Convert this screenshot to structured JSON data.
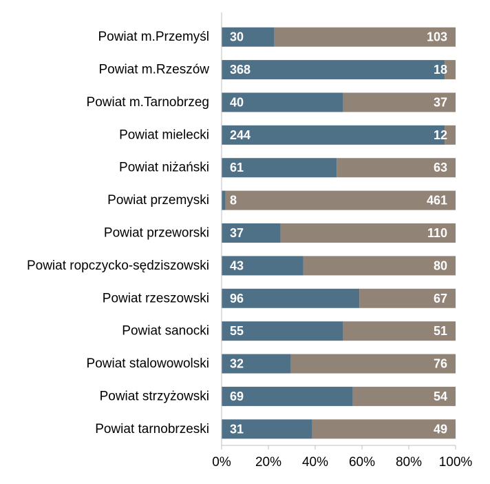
{
  "chart_data": {
    "type": "bar",
    "orientation": "horizontal",
    "stacked": true,
    "normalized": true,
    "categories": [
      "Powiat m.Przemyśl",
      "Powiat m.Rzeszów",
      "Powiat m.Tarnobrzeg",
      "Powiat mielecki",
      "Powiat niżański",
      "Powiat przemyski",
      "Powiat przeworski",
      "Powiat ropczycko-sędziszowski",
      "Powiat rzeszowski",
      "Powiat sanocki",
      "Powiat stalowowolski",
      "Powiat strzyżowski",
      "Powiat tarnobrzeski"
    ],
    "series": [
      {
        "color": "#4f7188",
        "values": [
          30,
          368,
          40,
          244,
          61,
          8,
          37,
          43,
          96,
          55,
          32,
          69,
          31
        ]
      },
      {
        "color": "#928377",
        "values": [
          103,
          18,
          37,
          12,
          63,
          461,
          110,
          80,
          67,
          51,
          76,
          54,
          49
        ]
      }
    ],
    "xticks": [
      "0%",
      "20%",
      "40%",
      "60%",
      "80%",
      "100%"
    ],
    "xlim": [
      0,
      1
    ],
    "title": "",
    "xlabel": "",
    "ylabel": "",
    "grid": false,
    "legend": "none",
    "axis_color": "#bfbfbf"
  }
}
